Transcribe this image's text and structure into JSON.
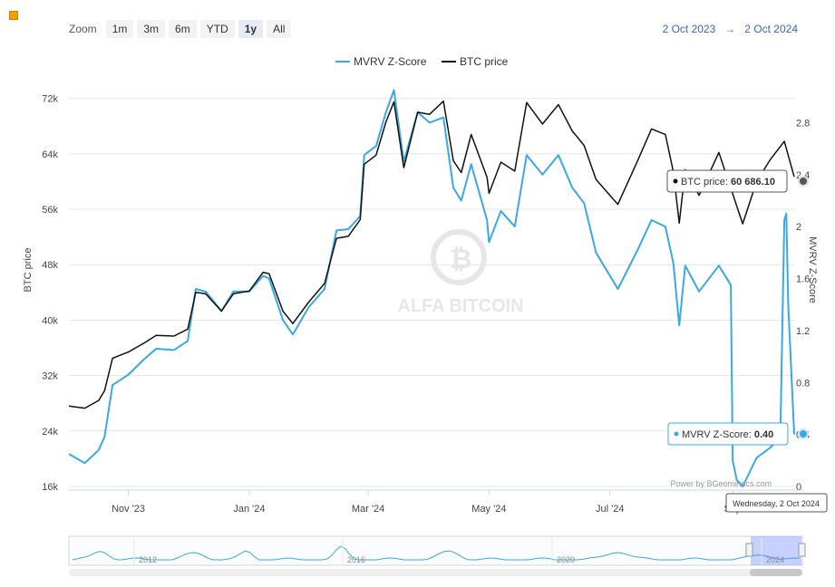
{
  "toolbar": {
    "zoom_label": "Zoom",
    "buttons": [
      "1m",
      "3m",
      "6m",
      "YTD",
      "1y",
      "All"
    ],
    "active": "1y"
  },
  "range": {
    "from": "2 Oct 2023",
    "arrow": "→",
    "to": "2 Oct 2024"
  },
  "legend": [
    {
      "name": "MVRV Z-Score",
      "color": "#3aa8e6"
    },
    {
      "name": "BTC price",
      "color": "#111111"
    }
  ],
  "watermark": "ALFA BITCOIN",
  "credit": "Power by BGeometrics.com",
  "tooltips": {
    "btc_label": "BTC price: ",
    "btc_value": "60 686.10",
    "mvrv_label": "MVRV Z-Score: ",
    "mvrv_value": "0.40",
    "date": "Wednesday, 2 Oct 2024"
  },
  "navigator": {
    "years": [
      "2012",
      "2016",
      "2020",
      "2024"
    ]
  },
  "chart_data": {
    "type": "line",
    "title": "",
    "xlabel": "",
    "ylabel": "BTC price",
    "y2label": "MVRV Z-Score",
    "x_tick_labels": [
      "Nov '23",
      "Jan '24",
      "Mar '24",
      "May '24",
      "Jul '24",
      "Sep"
    ],
    "y_ticks": [
      "16k",
      "24k",
      "32k",
      "40k",
      "48k",
      "56k",
      "64k",
      "72k"
    ],
    "y_range": [
      16000,
      76000
    ],
    "y2_ticks": [
      "0",
      "0.4",
      "0.8",
      "1.2",
      "1.6",
      "2",
      "2.4",
      "2.8"
    ],
    "y2_range": [
      0,
      3.2
    ],
    "x_range": [
      "2023-10-02",
      "2024-10-02"
    ],
    "grid": true,
    "legend_position": "top-center",
    "series": [
      {
        "name": "BTC price",
        "axis": "left",
        "points": [
          [
            "2023-10-02",
            27600
          ],
          [
            "2023-10-10",
            27300
          ],
          [
            "2023-10-17",
            28400
          ],
          [
            "2023-10-20",
            29800
          ],
          [
            "2023-10-24",
            34500
          ],
          [
            "2023-11-01",
            35400
          ],
          [
            "2023-11-09",
            36700
          ],
          [
            "2023-11-15",
            37800
          ],
          [
            "2023-11-24",
            37700
          ],
          [
            "2023-12-01",
            38700
          ],
          [
            "2023-12-05",
            44000
          ],
          [
            "2023-12-10",
            43800
          ],
          [
            "2023-12-18",
            41300
          ],
          [
            "2023-12-24",
            43800
          ],
          [
            "2024-01-01",
            44200
          ],
          [
            "2024-01-08",
            46900
          ],
          [
            "2024-01-11",
            46700
          ],
          [
            "2024-01-18",
            41300
          ],
          [
            "2024-01-23",
            39500
          ],
          [
            "2024-01-31",
            42600
          ],
          [
            "2024-02-08",
            45300
          ],
          [
            "2024-02-14",
            51800
          ],
          [
            "2024-02-20",
            52100
          ],
          [
            "2024-02-26",
            54500
          ],
          [
            "2024-02-28",
            62500
          ],
          [
            "2024-03-05",
            63800
          ],
          [
            "2024-03-10",
            68600
          ],
          [
            "2024-03-14",
            71500
          ],
          [
            "2024-03-19",
            62000
          ],
          [
            "2024-03-26",
            70000
          ],
          [
            "2024-04-01",
            69700
          ],
          [
            "2024-04-08",
            71600
          ],
          [
            "2024-04-13",
            63000
          ],
          [
            "2024-04-17",
            61300
          ],
          [
            "2024-04-22",
            66800
          ],
          [
            "2024-04-30",
            60600
          ],
          [
            "2024-05-01",
            58300
          ],
          [
            "2024-05-07",
            62800
          ],
          [
            "2024-05-14",
            61500
          ],
          [
            "2024-05-20",
            71400
          ],
          [
            "2024-05-28",
            68300
          ],
          [
            "2024-06-05",
            71100
          ],
          [
            "2024-06-12",
            67300
          ],
          [
            "2024-06-18",
            65200
          ],
          [
            "2024-06-24",
            60300
          ],
          [
            "2024-07-05",
            56700
          ],
          [
            "2024-07-15",
            63000
          ],
          [
            "2024-07-22",
            67600
          ],
          [
            "2024-07-29",
            66800
          ],
          [
            "2024-08-02",
            61400
          ],
          [
            "2024-08-05",
            54000
          ],
          [
            "2024-08-08",
            61700
          ],
          [
            "2024-08-15",
            58000
          ],
          [
            "2024-08-25",
            64200
          ],
          [
            "2024-09-06",
            53900
          ],
          [
            "2024-09-13",
            60000
          ],
          [
            "2024-09-20",
            63200
          ],
          [
            "2024-09-27",
            65800
          ],
          [
            "2024-10-02",
            60686.1
          ]
        ]
      },
      {
        "name": "MVRV Z-Score",
        "axis": "right",
        "points": [
          [
            "2023-10-02",
            0.25
          ],
          [
            "2023-10-10",
            0.18
          ],
          [
            "2023-10-17",
            0.28
          ],
          [
            "2023-10-20",
            0.38
          ],
          [
            "2023-10-24",
            0.78
          ],
          [
            "2023-11-01",
            0.86
          ],
          [
            "2023-11-09",
            0.98
          ],
          [
            "2023-11-15",
            1.06
          ],
          [
            "2023-11-24",
            1.05
          ],
          [
            "2023-12-01",
            1.12
          ],
          [
            "2023-12-05",
            1.52
          ],
          [
            "2023-12-10",
            1.5
          ],
          [
            "2023-12-18",
            1.35
          ],
          [
            "2023-12-24",
            1.5
          ],
          [
            "2024-01-01",
            1.5
          ],
          [
            "2024-01-08",
            1.62
          ],
          [
            "2024-01-11",
            1.6
          ],
          [
            "2024-01-18",
            1.28
          ],
          [
            "2024-01-23",
            1.17
          ],
          [
            "2024-01-31",
            1.38
          ],
          [
            "2024-02-08",
            1.52
          ],
          [
            "2024-02-14",
            1.97
          ],
          [
            "2024-02-20",
            1.98
          ],
          [
            "2024-02-26",
            2.08
          ],
          [
            "2024-02-28",
            2.55
          ],
          [
            "2024-03-05",
            2.62
          ],
          [
            "2024-03-10",
            2.88
          ],
          [
            "2024-03-14",
            3.05
          ],
          [
            "2024-03-19",
            2.5
          ],
          [
            "2024-03-26",
            2.88
          ],
          [
            "2024-04-01",
            2.8
          ],
          [
            "2024-04-08",
            2.84
          ],
          [
            "2024-04-13",
            2.3
          ],
          [
            "2024-04-17",
            2.2
          ],
          [
            "2024-04-22",
            2.48
          ],
          [
            "2024-04-30",
            2.05
          ],
          [
            "2024-05-01",
            1.88
          ],
          [
            "2024-05-07",
            2.12
          ],
          [
            "2024-05-14",
            2.0
          ],
          [
            "2024-05-20",
            2.55
          ],
          [
            "2024-05-28",
            2.4
          ],
          [
            "2024-06-05",
            2.55
          ],
          [
            "2024-06-12",
            2.3
          ],
          [
            "2024-06-18",
            2.18
          ],
          [
            "2024-06-24",
            1.8
          ],
          [
            "2024-07-05",
            1.52
          ],
          [
            "2024-07-15",
            1.82
          ],
          [
            "2024-07-22",
            2.05
          ],
          [
            "2024-07-29",
            2.0
          ],
          [
            "2024-08-02",
            1.72
          ],
          [
            "2024-08-05",
            1.24
          ],
          [
            "2024-08-08",
            1.7
          ],
          [
            "2024-08-15",
            1.5
          ],
          [
            "2024-08-25",
            1.7
          ],
          [
            "2024-08-31",
            1.55
          ],
          [
            "2024-09-01",
            0.2
          ],
          [
            "2024-09-03",
            0.05
          ],
          [
            "2024-09-06",
            0.0
          ],
          [
            "2024-09-13",
            0.22
          ],
          [
            "2024-09-20",
            0.3
          ],
          [
            "2024-09-25",
            0.38
          ],
          [
            "2024-09-27",
            2.05
          ],
          [
            "2024-09-28",
            2.1
          ],
          [
            "2024-09-29",
            1.4
          ],
          [
            "2024-10-02",
            0.4
          ]
        ]
      }
    ]
  }
}
